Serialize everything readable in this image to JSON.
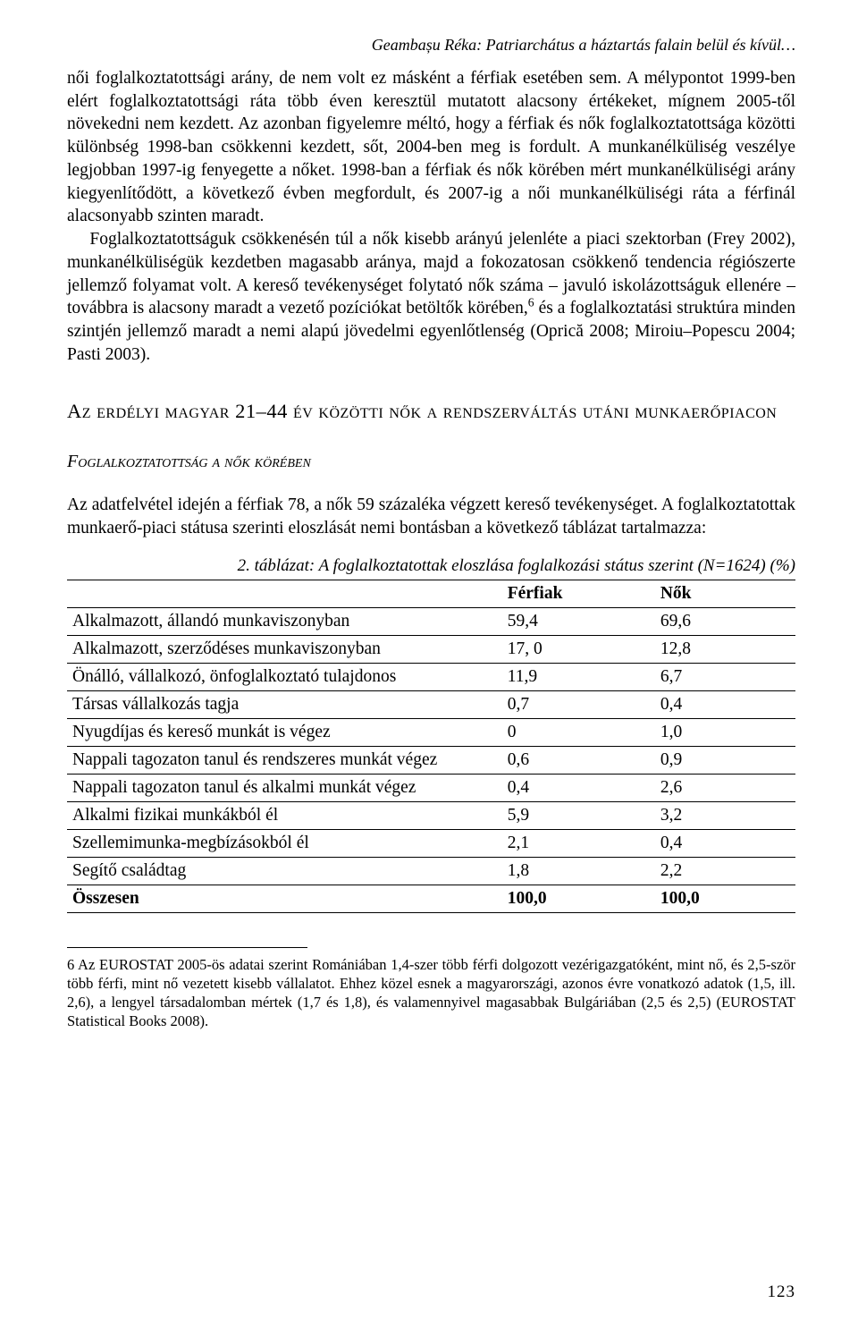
{
  "running_head": "Geambașu Réka: Patriarchátus a háztartás falain belül és kívül…",
  "paragraphs": {
    "p1": "női foglalkoztatottsági arány, de nem volt ez másként a férfiak esetében sem. A mélypontot 1999-ben elért foglalkoztatottsági ráta több éven keresztül mutatott alacsony értékeket, mígnem 2005-től növekedni nem kezdett. Az azonban figyelemre méltó, hogy a férfiak és nők foglalkoztatottsága közötti különbség 1998-ban csökkenni kezdett, sőt, 2004-ben meg is fordult. A munkanélküliség veszélye legjobban 1997-ig fenyegette a nőket. 1998-ban a férfiak és nők körében mért munkanélküliségi arány kiegyenlítődött, a következő évben megfordult, és 2007-ig a női munkanélküliségi ráta a férfinál alacsonyabb szinten maradt.",
    "p2a": "Foglalkoztatottságuk csökkenésén túl a nők kisebb arányú jelenléte a piaci szektorban (Frey 2002), munkanélküliségük kezdetben magasabb aránya, majd a fokozatosan csökkenő tendencia régiószerte jellemző folyamat volt. A kereső tevékenységet folytató nők száma – javuló iskolázottságuk ellenére – továbbra is alacsony maradt a vezető pozíciókat betöltők körében,",
    "p2b": " és a foglalkoztatási struktúra minden szintjén jellemző maradt a nemi alapú jövedelmi egyenlőtlenség (Oprică 2008; Miroiu–Popescu 2004; Pasti 2003).",
    "p3": "Az adatfelvétel idején a férfiak 78, a nők 59 százaléka végzett kereső tevékenységet. A foglalkoztatottak munkaerő-piaci státusa szerinti eloszlását nemi bontásban a következő táblázat tartalmazza:"
  },
  "section_heading": "Az erdélyi magyar 21–44 év közötti nők a rendszerváltás utáni munkaerőpiacon",
  "subsection_heading": "Foglalkoztatottság a nők körében",
  "table": {
    "caption": "2. táblázat: A foglalkoztatottak eloszlása foglalkozási státus szerint (N=1624) (%)",
    "columns": [
      "",
      "Férfiak",
      "Nők"
    ],
    "rows": [
      [
        "Alkalmazott, állandó munkaviszonyban",
        "59,4",
        "69,6"
      ],
      [
        "Alkalmazott, szerződéses munkaviszonyban",
        "17, 0",
        "12,8"
      ],
      [
        "Önálló, vállalkozó, önfoglalkoztató tulajdonos",
        "11,9",
        "6,7"
      ],
      [
        "Társas vállalkozás tagja",
        "0,7",
        "0,4"
      ],
      [
        "Nyugdíjas és kereső munkát is végez",
        "0",
        "1,0"
      ],
      [
        "Nappali tagozaton tanul és rendszeres munkát végez",
        "0,6",
        "0,9"
      ],
      [
        "Nappali tagozaton tanul és alkalmi munkát végez",
        "0,4",
        "2,6"
      ],
      [
        "Alkalmi fizikai munkákból él",
        "5,9",
        "3,2"
      ],
      [
        "Szellemimunka-megbízásokból él",
        "2,1",
        "0,4"
      ],
      [
        "Segítő családtag",
        "1,8",
        "2,2"
      ]
    ],
    "total": [
      "Összesen",
      "100,0",
      "100,0"
    ],
    "col_widths_pct": [
      58,
      21,
      21
    ],
    "border_color": "#000000",
    "header_font_weight": "bold",
    "font_size_pt": 15,
    "background_color": "#ffffff"
  },
  "footnote": {
    "marker": "6",
    "text": "6 Az EUROSTAT 2005-ös adatai szerint Romániában 1,4-szer több férfi dolgozott vezérigazgatóként, mint nő, és 2,5-ször több férfi, mint nő vezetett kisebb vállalatot. Ehhez közel esnek a magyarországi, azonos évre vonatkozó adatok (1,5, ill. 2,6), a lengyel társadalomban mértek (1,7 és 1,8), és valamennyivel magasabbak Bulgáriában (2,5 és 2,5) (EUROSTAT Statistical Books 2008)."
  },
  "page_number": "123",
  "typography": {
    "body_font_family": "Georgia/serif",
    "body_font_size_pt": 15,
    "heading_small_caps": true,
    "text_color": "#000000",
    "background_color": "#ffffff"
  }
}
